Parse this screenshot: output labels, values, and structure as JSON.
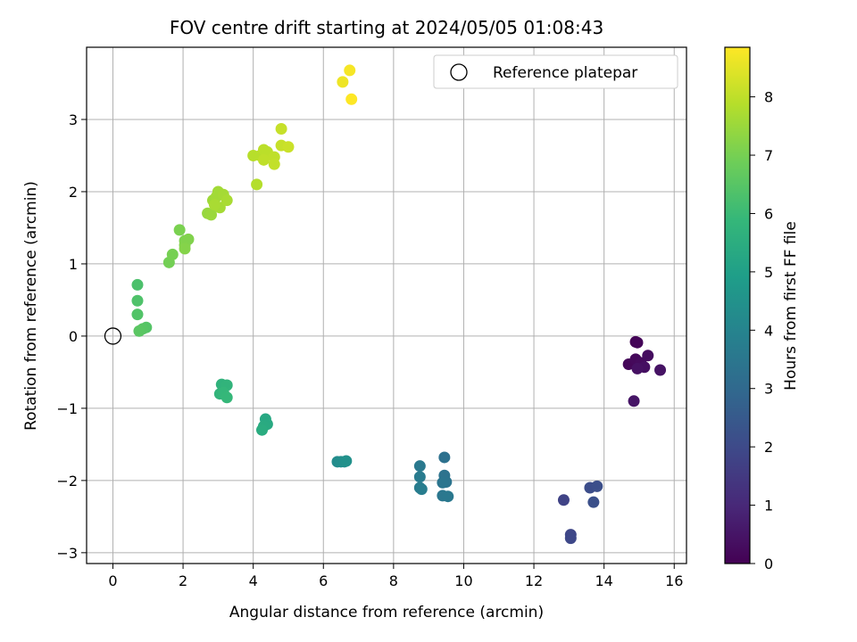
{
  "chart_data": {
    "type": "scatter",
    "title": "FOV centre drift starting at 2024/05/05 01:08:43",
    "xlabel": "Angular distance from reference (arcmin)",
    "ylabel": "Rotation from reference (arcmin)",
    "xlim": [
      -0.75,
      16.35
    ],
    "ylim": [
      -3.15,
      4.0
    ],
    "xticks": [
      0,
      2,
      4,
      6,
      8,
      10,
      12,
      14,
      16
    ],
    "yticks": [
      -3,
      -2,
      -1,
      0,
      1,
      2,
      3
    ],
    "grid": true,
    "legend": {
      "position": "upper-right",
      "entries": [
        "Reference platepar"
      ]
    },
    "reference_point": {
      "x": 0,
      "y": 0,
      "label": "Reference platepar"
    },
    "colorbar": {
      "label": "Hours from first FF file",
      "min": 0,
      "max": 8.85,
      "ticks": [
        0,
        1,
        2,
        3,
        4,
        5,
        6,
        7,
        8
      ],
      "colormap": "viridis",
      "colors": [
        "#440154",
        "#482878",
        "#3e4989",
        "#31688e",
        "#26828e",
        "#1f9e89",
        "#35b779",
        "#6ece58",
        "#b5de2b",
        "#fde725"
      ]
    },
    "points": [
      {
        "x": 14.9,
        "y": -0.08,
        "t": 0.05
      },
      {
        "x": 14.95,
        "y": -0.09,
        "t": 0.1
      },
      {
        "x": 14.7,
        "y": -0.39,
        "t": 0.15
      },
      {
        "x": 14.9,
        "y": -0.32,
        "t": 0.2
      },
      {
        "x": 15.05,
        "y": -0.37,
        "t": 0.25
      },
      {
        "x": 15.25,
        "y": -0.27,
        "t": 0.3
      },
      {
        "x": 15.15,
        "y": -0.43,
        "t": 0.35
      },
      {
        "x": 14.95,
        "y": -0.45,
        "t": 0.4
      },
      {
        "x": 15.6,
        "y": -0.47,
        "t": 0.45
      },
      {
        "x": 14.85,
        "y": -0.9,
        "t": 0.5
      },
      {
        "x": 12.85,
        "y": -2.27,
        "t": 1.8
      },
      {
        "x": 13.05,
        "y": -2.75,
        "t": 1.9
      },
      {
        "x": 13.05,
        "y": -2.8,
        "t": 1.95
      },
      {
        "x": 13.6,
        "y": -2.1,
        "t": 2.1
      },
      {
        "x": 13.8,
        "y": -2.08,
        "t": 2.15
      },
      {
        "x": 13.7,
        "y": -2.3,
        "t": 2.2
      },
      {
        "x": 9.45,
        "y": -1.68,
        "t": 3.3
      },
      {
        "x": 9.45,
        "y": -1.93,
        "t": 3.35
      },
      {
        "x": 9.5,
        "y": -2.02,
        "t": 3.4
      },
      {
        "x": 9.4,
        "y": -2.03,
        "t": 3.45
      },
      {
        "x": 9.4,
        "y": -2.21,
        "t": 3.5
      },
      {
        "x": 9.55,
        "y": -2.22,
        "t": 3.55
      },
      {
        "x": 8.75,
        "y": -1.8,
        "t": 3.6
      },
      {
        "x": 8.75,
        "y": -1.95,
        "t": 3.65
      },
      {
        "x": 8.75,
        "y": -2.1,
        "t": 3.7
      },
      {
        "x": 8.8,
        "y": -2.12,
        "t": 3.75
      },
      {
        "x": 6.4,
        "y": -1.74,
        "t": 4.3
      },
      {
        "x": 6.5,
        "y": -1.74,
        "t": 4.35
      },
      {
        "x": 6.6,
        "y": -1.74,
        "t": 4.4
      },
      {
        "x": 6.65,
        "y": -1.73,
        "t": 4.45
      },
      {
        "x": 4.35,
        "y": -1.15,
        "t": 5.3
      },
      {
        "x": 4.4,
        "y": -1.22,
        "t": 5.35
      },
      {
        "x": 4.3,
        "y": -1.25,
        "t": 5.4
      },
      {
        "x": 4.25,
        "y": -1.3,
        "t": 5.45
      },
      {
        "x": 3.1,
        "y": -0.67,
        "t": 5.7
      },
      {
        "x": 3.25,
        "y": -0.68,
        "t": 5.75
      },
      {
        "x": 3.05,
        "y": -0.8,
        "t": 5.8
      },
      {
        "x": 3.15,
        "y": -0.78,
        "t": 5.85
      },
      {
        "x": 3.25,
        "y": -0.85,
        "t": 5.9
      },
      {
        "x": 0.7,
        "y": 0.71,
        "t": 6.3
      },
      {
        "x": 0.7,
        "y": 0.49,
        "t": 6.35
      },
      {
        "x": 0.7,
        "y": 0.3,
        "t": 6.4
      },
      {
        "x": 0.95,
        "y": 0.12,
        "t": 6.45
      },
      {
        "x": 0.85,
        "y": 0.1,
        "t": 6.5
      },
      {
        "x": 0.75,
        "y": 0.07,
        "t": 6.55
      },
      {
        "x": 1.6,
        "y": 1.02,
        "t": 6.95
      },
      {
        "x": 1.7,
        "y": 1.13,
        "t": 7.0
      },
      {
        "x": 1.9,
        "y": 1.47,
        "t": 7.05
      },
      {
        "x": 2.05,
        "y": 1.32,
        "t": 7.1
      },
      {
        "x": 2.15,
        "y": 1.34,
        "t": 7.15
      },
      {
        "x": 2.05,
        "y": 1.26,
        "t": 7.15
      },
      {
        "x": 2.05,
        "y": 1.21,
        "t": 7.2
      },
      {
        "x": 2.7,
        "y": 1.7,
        "t": 7.45
      },
      {
        "x": 2.8,
        "y": 1.68,
        "t": 7.5
      },
      {
        "x": 2.85,
        "y": 1.88,
        "t": 7.55
      },
      {
        "x": 2.95,
        "y": 1.93,
        "t": 7.6
      },
      {
        "x": 3.0,
        "y": 2.0,
        "t": 7.6
      },
      {
        "x": 3.05,
        "y": 1.78,
        "t": 7.65
      },
      {
        "x": 3.15,
        "y": 1.96,
        "t": 7.65
      },
      {
        "x": 3.25,
        "y": 1.88,
        "t": 7.7
      },
      {
        "x": 2.9,
        "y": 1.82,
        "t": 7.7
      },
      {
        "x": 4.1,
        "y": 2.1,
        "t": 7.85
      },
      {
        "x": 4.0,
        "y": 2.5,
        "t": 7.9
      },
      {
        "x": 4.2,
        "y": 2.5,
        "t": 7.9
      },
      {
        "x": 4.3,
        "y": 2.58,
        "t": 7.95
      },
      {
        "x": 4.4,
        "y": 2.55,
        "t": 7.95
      },
      {
        "x": 4.3,
        "y": 2.44,
        "t": 8.0
      },
      {
        "x": 4.6,
        "y": 2.48,
        "t": 8.0
      },
      {
        "x": 4.6,
        "y": 2.38,
        "t": 8.05
      },
      {
        "x": 4.8,
        "y": 2.87,
        "t": 8.1
      },
      {
        "x": 4.8,
        "y": 2.64,
        "t": 8.1
      },
      {
        "x": 5.0,
        "y": 2.62,
        "t": 8.15
      },
      {
        "x": 6.55,
        "y": 3.52,
        "t": 8.65
      },
      {
        "x": 6.75,
        "y": 3.68,
        "t": 8.75
      },
      {
        "x": 6.8,
        "y": 3.28,
        "t": 8.85
      }
    ]
  }
}
